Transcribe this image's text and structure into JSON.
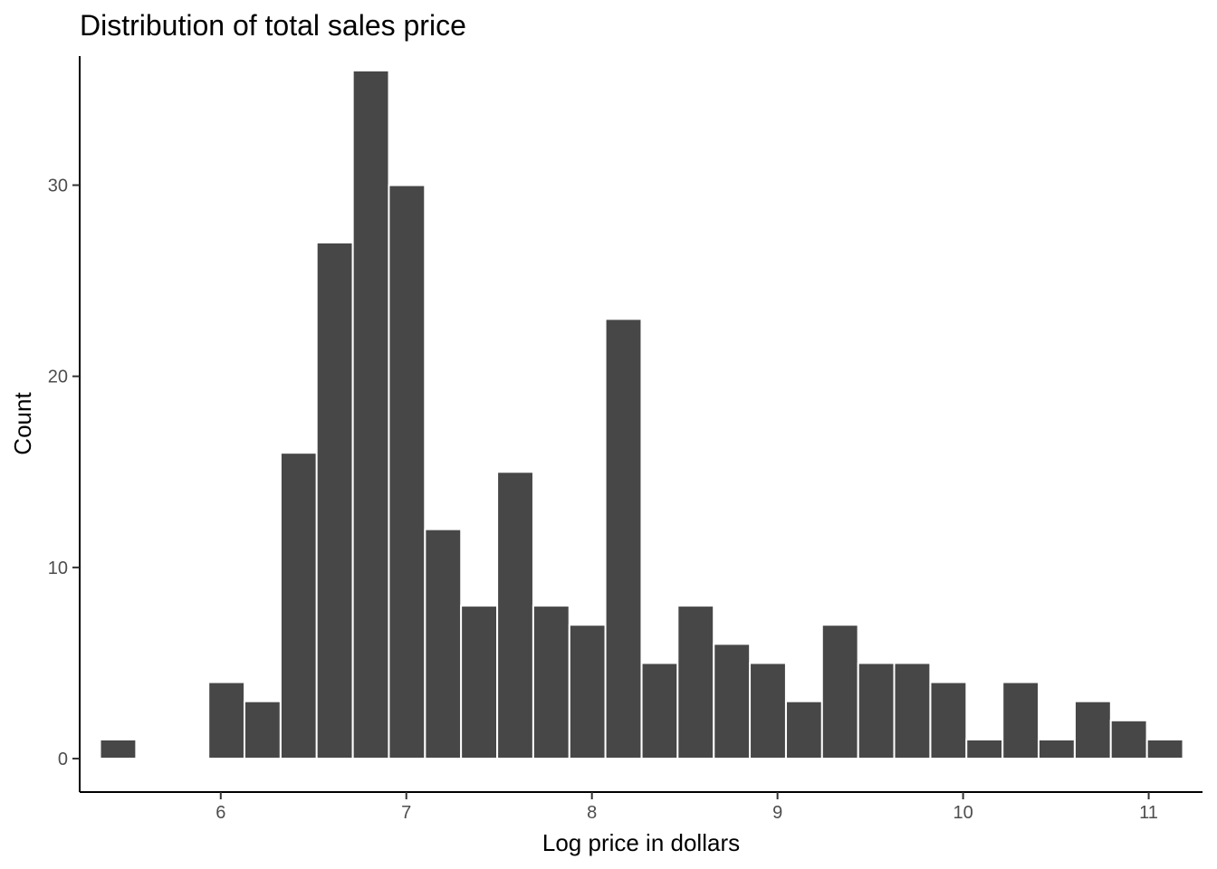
{
  "chart_data": {
    "type": "bar",
    "title": "Distribution of total sales price",
    "xlabel": "Log price in dollars",
    "ylabel": "Count",
    "xlim": [
      5.24,
      11.29
    ],
    "ylim": [
      -1.75,
      36.75
    ],
    "x_ticks": [
      6,
      7,
      8,
      9,
      10,
      11
    ],
    "y_ticks": [
      0,
      10,
      20,
      30
    ],
    "bin_width": 0.1945,
    "bar_fill": "#474747",
    "bar_outline": "#ffffff",
    "grid": false,
    "bins": [
      {
        "x": 5.447,
        "count": 1
      },
      {
        "x": 6.031,
        "count": 4
      },
      {
        "x": 6.225,
        "count": 3
      },
      {
        "x": 6.42,
        "count": 16
      },
      {
        "x": 6.614,
        "count": 27
      },
      {
        "x": 6.809,
        "count": 36
      },
      {
        "x": 7.003,
        "count": 30
      },
      {
        "x": 7.198,
        "count": 12
      },
      {
        "x": 7.392,
        "count": 8
      },
      {
        "x": 7.587,
        "count": 15
      },
      {
        "x": 7.781,
        "count": 8
      },
      {
        "x": 7.976,
        "count": 7
      },
      {
        "x": 8.17,
        "count": 23
      },
      {
        "x": 8.365,
        "count": 5
      },
      {
        "x": 8.559,
        "count": 8
      },
      {
        "x": 8.754,
        "count": 6
      },
      {
        "x": 8.948,
        "count": 5
      },
      {
        "x": 9.143,
        "count": 3
      },
      {
        "x": 9.337,
        "count": 7
      },
      {
        "x": 9.532,
        "count": 5
      },
      {
        "x": 9.726,
        "count": 5
      },
      {
        "x": 9.921,
        "count": 4
      },
      {
        "x": 10.115,
        "count": 1
      },
      {
        "x": 10.31,
        "count": 4
      },
      {
        "x": 10.504,
        "count": 1
      },
      {
        "x": 10.699,
        "count": 3
      },
      {
        "x": 10.893,
        "count": 2
      },
      {
        "x": 11.088,
        "count": 1
      }
    ]
  }
}
